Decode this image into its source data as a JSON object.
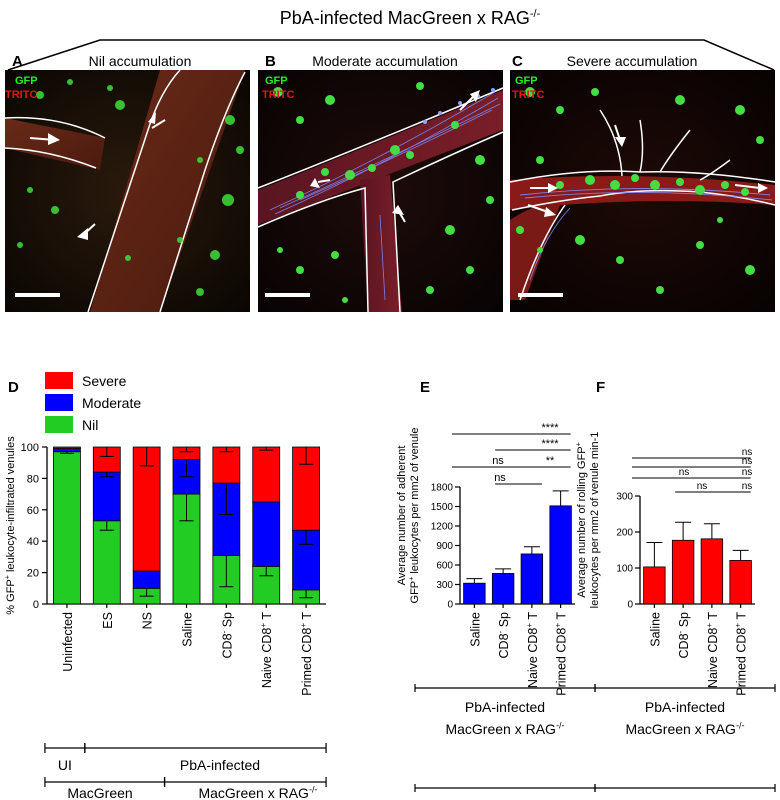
{
  "header": {
    "title": "PbA-infected MacGreen x RAG",
    "title_sup": "-/-"
  },
  "panels": [
    {
      "letter": "A",
      "title": "Nil accumulation",
      "labels": [
        "GFP",
        "TRITC"
      ]
    },
    {
      "letter": "B",
      "title": "Moderate accumulation",
      "labels": [
        "GFP",
        "TRITC"
      ]
    },
    {
      "letter": "C",
      "title": "Severe accumulation",
      "labels": [
        "GFP",
        "TRITC"
      ]
    }
  ],
  "colors": {
    "severe": "#ff0000",
    "moderate": "#0000ff",
    "nil": "#22cc22",
    "gfp": "#22ee22",
    "tritc": "#ee1111"
  },
  "chart_data": [
    {
      "panel": "D",
      "type": "bar",
      "stacked": true,
      "ylabel": "% GFP+ leukocyte-infiltrated venules",
      "ylim": [
        0,
        100
      ],
      "yticks": [
        "0",
        "20",
        "40",
        "60",
        "80",
        "100"
      ],
      "categories": [
        "Uninfected",
        "ES",
        "NS",
        "Saline",
        "CD8- Sp",
        "Naive CD8+ T",
        "Primed CD8+ T"
      ],
      "legend": [
        "Severe",
        "Moderate",
        "Nil"
      ],
      "series": [
        {
          "name": "Nil",
          "values": [
            97,
            53,
            10,
            70,
            31,
            24,
            9
          ],
          "errors": [
            1,
            6,
            5,
            17,
            20,
            6,
            5
          ]
        },
        {
          "name": "Moderate",
          "values": [
            2,
            31,
            11,
            22,
            46,
            41,
            38
          ],
          "errors": [
            0,
            3,
            0,
            11,
            20,
            0,
            9
          ]
        },
        {
          "name": "Severe",
          "values": [
            1,
            16,
            79,
            8,
            23,
            35,
            53
          ],
          "errors": [
            0,
            6,
            12,
            3,
            3,
            2,
            11
          ]
        }
      ],
      "groups": [
        {
          "label": "UI"
        },
        {
          "label": "PbA-infected"
        },
        {
          "label": "MacGreen"
        },
        {
          "label": "MacGreen x RAG-/-"
        }
      ]
    },
    {
      "panel": "E",
      "type": "bar",
      "ylabel": "Average number of adherent GFP+ leukocytes per mm2 of venule",
      "ylim": [
        0,
        1800
      ],
      "yticks": [
        "0",
        "300",
        "600",
        "900",
        "1200",
        "1500",
        "1800"
      ],
      "categories": [
        "Saline",
        "CD8- Sp",
        "Naive CD8+ T",
        "Primed CD8+ T"
      ],
      "values": [
        320,
        470,
        770,
        1510
      ],
      "errors": [
        70,
        70,
        110,
        230
      ],
      "significance": [
        "ns",
        "ns",
        "**",
        "****",
        "****"
      ],
      "footer": [
        "PbA-infected",
        "MacGreen x RAG-/-"
      ]
    },
    {
      "panel": "F",
      "type": "bar",
      "ylabel": "Average number of rolling GFP+ leukocytes per mm2 of venule min-1",
      "ylim": [
        0,
        300
      ],
      "yticks": [
        "0",
        "100",
        "200",
        "300"
      ],
      "categories": [
        "Saline",
        "CD8- Sp",
        "Naive CD8+ T",
        "Primed CD8+ T"
      ],
      "values": [
        103,
        177,
        181,
        121
      ],
      "errors": [
        68,
        50,
        42,
        28
      ],
      "significance": [
        "ns",
        "ns",
        "ns",
        "ns",
        "ns",
        "ns"
      ],
      "footer": [
        "PbA-infected",
        "MacGreen x RAG-/-"
      ]
    }
  ]
}
